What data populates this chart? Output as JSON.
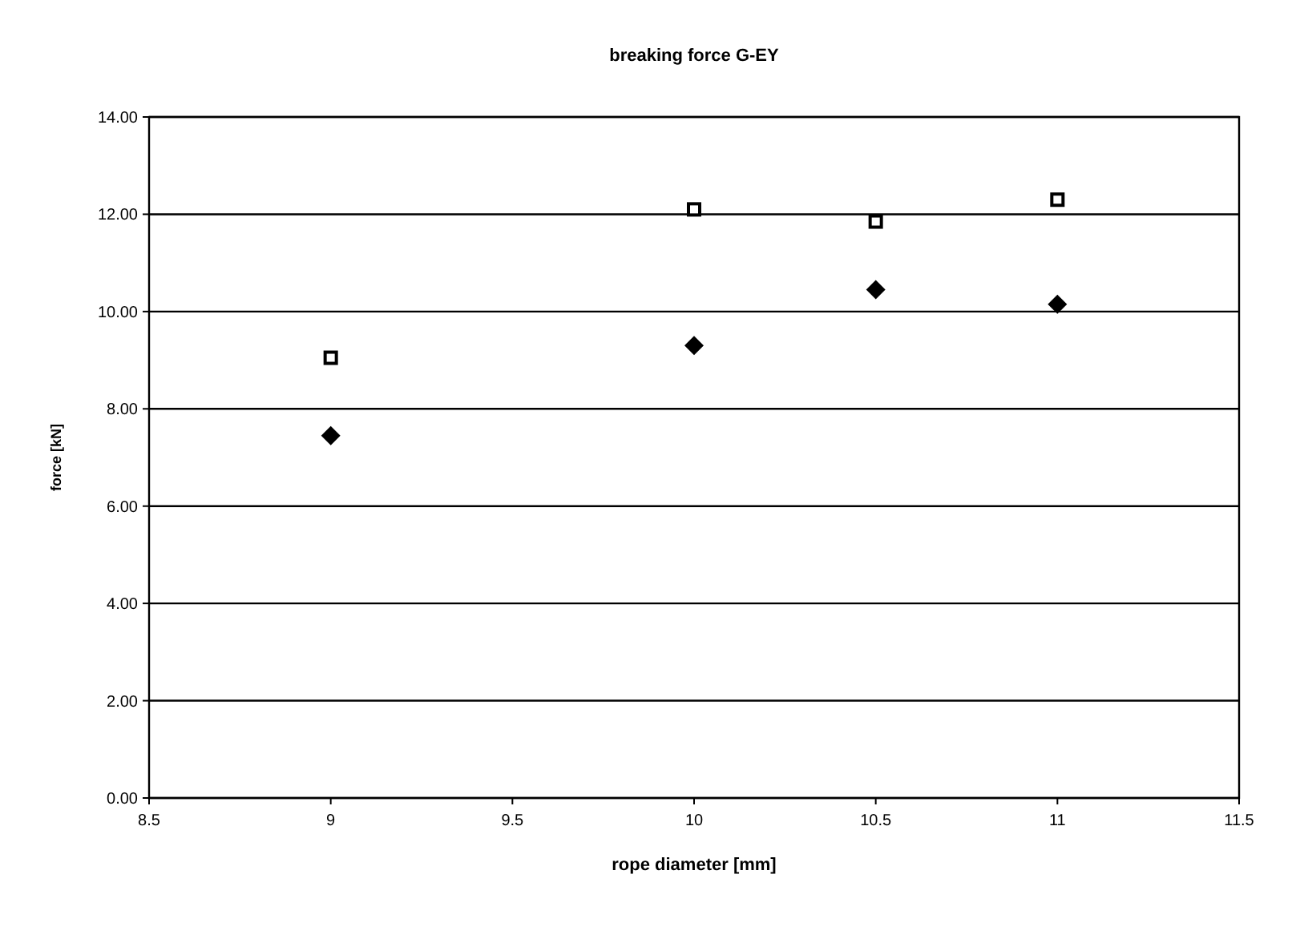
{
  "chart_data": {
    "type": "scatter",
    "title": "breaking force G-EY",
    "xlabel": "rope diameter [mm]",
    "ylabel": "force [kN]",
    "x": [
      9,
      10,
      10.5,
      11
    ],
    "series": [
      {
        "color": "#000000",
        "marker": "square",
        "values": [
          9.05,
          12.1,
          11.85,
          12.3
        ]
      },
      {
        "color": "#000000",
        "marker": "diamond",
        "values": [
          7.45,
          9.3,
          10.45,
          10.15
        ]
      }
    ],
    "xlim": [
      8.5,
      11.5
    ],
    "xticks": [
      8.5,
      9,
      9.5,
      10,
      10.5,
      11,
      11.5
    ],
    "ylim": [
      0,
      14
    ],
    "yticks": [
      {
        "value": 0,
        "label": "0.00"
      },
      {
        "value": 2,
        "label": "2.00"
      },
      {
        "value": 4,
        "label": "4.00"
      },
      {
        "value": 6,
        "label": "6.00"
      },
      {
        "value": 8,
        "label": "8.00"
      },
      {
        "value": 10,
        "label": "10.00"
      },
      {
        "value": 12,
        "label": "12.00"
      },
      {
        "value": 14,
        "label": "14.00"
      }
    ],
    "grid": "y"
  }
}
